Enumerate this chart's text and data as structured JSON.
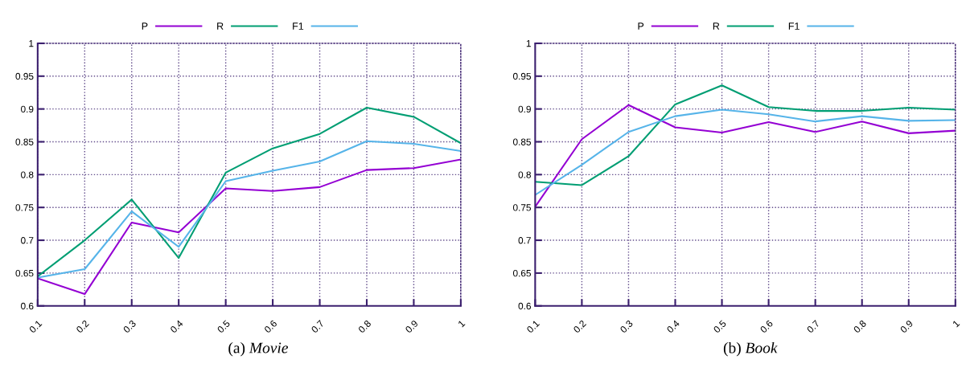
{
  "chart_data": [
    {
      "type": "line",
      "title": "(a) Movie",
      "x": [
        0.1,
        0.2,
        0.3,
        0.4,
        0.5,
        0.6,
        0.7,
        0.8,
        0.9,
        1
      ],
      "series": [
        {
          "name": "P",
          "color": "#9400d3",
          "values": [
            0.642,
            0.618,
            0.727,
            0.712,
            0.779,
            0.775,
            0.781,
            0.807,
            0.81,
            0.823
          ]
        },
        {
          "name": "R",
          "color": "#009e73",
          "values": [
            0.645,
            0.7,
            0.762,
            0.673,
            0.803,
            0.84,
            0.862,
            0.902,
            0.888,
            0.848
          ]
        },
        {
          "name": "F1",
          "color": "#56b4e9",
          "values": [
            0.643,
            0.656,
            0.744,
            0.69,
            0.79,
            0.806,
            0.82,
            0.851,
            0.847,
            0.836
          ]
        }
      ],
      "xlim": [
        0.1,
        1
      ],
      "xticks": [
        0.1,
        0.2,
        0.3,
        0.4,
        0.5,
        0.6,
        0.7,
        0.8,
        0.9,
        1
      ],
      "ylim": [
        0.6,
        1
      ],
      "yticks": [
        0.6,
        0.65,
        0.7,
        0.75,
        0.8,
        0.85,
        0.9,
        0.95,
        1
      ],
      "grid": true,
      "legend": "top",
      "marker": "none"
    },
    {
      "type": "line",
      "title": "(b) Book",
      "x": [
        0.1,
        0.2,
        0.3,
        0.4,
        0.5,
        0.6,
        0.7,
        0.8,
        0.9,
        1
      ],
      "series": [
        {
          "name": "P",
          "color": "#9400d3",
          "values": [
            0.751,
            0.854,
            0.906,
            0.872,
            0.864,
            0.88,
            0.865,
            0.881,
            0.863,
            0.867
          ]
        },
        {
          "name": "R",
          "color": "#009e73",
          "values": [
            0.789,
            0.784,
            0.828,
            0.907,
            0.936,
            0.903,
            0.897,
            0.897,
            0.902,
            0.899
          ]
        },
        {
          "name": "F1",
          "color": "#56b4e9",
          "values": [
            0.769,
            0.815,
            0.865,
            0.889,
            0.899,
            0.892,
            0.881,
            0.889,
            0.882,
            0.883
          ]
        }
      ],
      "xlim": [
        0.1,
        1
      ],
      "xticks": [
        0.1,
        0.2,
        0.3,
        0.4,
        0.5,
        0.6,
        0.7,
        0.8,
        0.9,
        1
      ],
      "ylim": [
        0.6,
        1
      ],
      "yticks": [
        0.6,
        0.65,
        0.7,
        0.75,
        0.8,
        0.85,
        0.9,
        0.95,
        1
      ],
      "grid": true,
      "legend": "top",
      "marker": "none"
    }
  ]
}
